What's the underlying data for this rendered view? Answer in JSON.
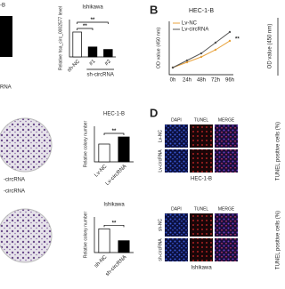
{
  "fragments": [
    "-B",
    "RNA",
    "-circRNA",
    "-circRNA",
    "OD value (450 nm)",
    "TUNEL positive cells (%)",
    "TUNEL positive cells (%)"
  ],
  "panel_letters": [
    "B",
    "D"
  ],
  "charts": [
    {
      "type": "bar",
      "title": "Ishikawa",
      "y_label": "Relative hsa_circ_0002577 level",
      "categories": [
        "sh-NC",
        "#1",
        "#2"
      ],
      "group_label": "sh-circRNA",
      "values": [
        1.0,
        0.4,
        0.3
      ],
      "colors": [
        "#ffffff",
        "#000000",
        "#000000"
      ],
      "sig": [
        "**",
        "**"
      ],
      "ylim": [
        0,
        1.5
      ]
    },
    {
      "type": "bar",
      "title": "HEC-1-B",
      "y_label": "Relative colony number",
      "categories": [
        "Lv-NC",
        "Lv-circRNA"
      ],
      "values": [
        1.0,
        1.4
      ],
      "colors": [
        "#ffffff",
        "#000000"
      ],
      "sig": [
        "**"
      ],
      "ylim": [
        0,
        2
      ]
    },
    {
      "type": "bar",
      "title": "Ishikawa",
      "y_label": "Relative colony number",
      "categories": [
        "sh-NC",
        "sh-circRNA"
      ],
      "values": [
        1.0,
        0.5
      ],
      "colors": [
        "#ffffff",
        "#000000"
      ],
      "sig": [
        "**"
      ],
      "ylim": [
        0,
        1.5
      ]
    },
    {
      "type": "line",
      "title": "HEC-1-B",
      "y_label": "OD value (450 nm)",
      "categories": [
        "0h",
        "24h",
        "48h",
        "72h",
        "96h"
      ],
      "series": [
        {
          "name": "Lv-NC",
          "color": "#e8a33d",
          "values": [
            0.2,
            0.35,
            0.5,
            0.7,
            0.95
          ]
        },
        {
          "name": "Lv-circRNA",
          "color": "#555555",
          "values": [
            0.2,
            0.4,
            0.6,
            0.9,
            1.2
          ]
        }
      ],
      "sig": [
        "**"
      ],
      "ylim": [
        0,
        1.5
      ]
    }
  ],
  "tunel": {
    "columns": [
      "DAPI",
      "TUNEL",
      "MERGE"
    ],
    "blocks": [
      {
        "rows": [
          "Lv-NC",
          "Lv-circRNA"
        ],
        "caption": "HEC-1-B"
      },
      {
        "rows": [
          "sh-NC",
          "sh-circRNA"
        ],
        "caption": "Ishikawa"
      }
    ]
  }
}
